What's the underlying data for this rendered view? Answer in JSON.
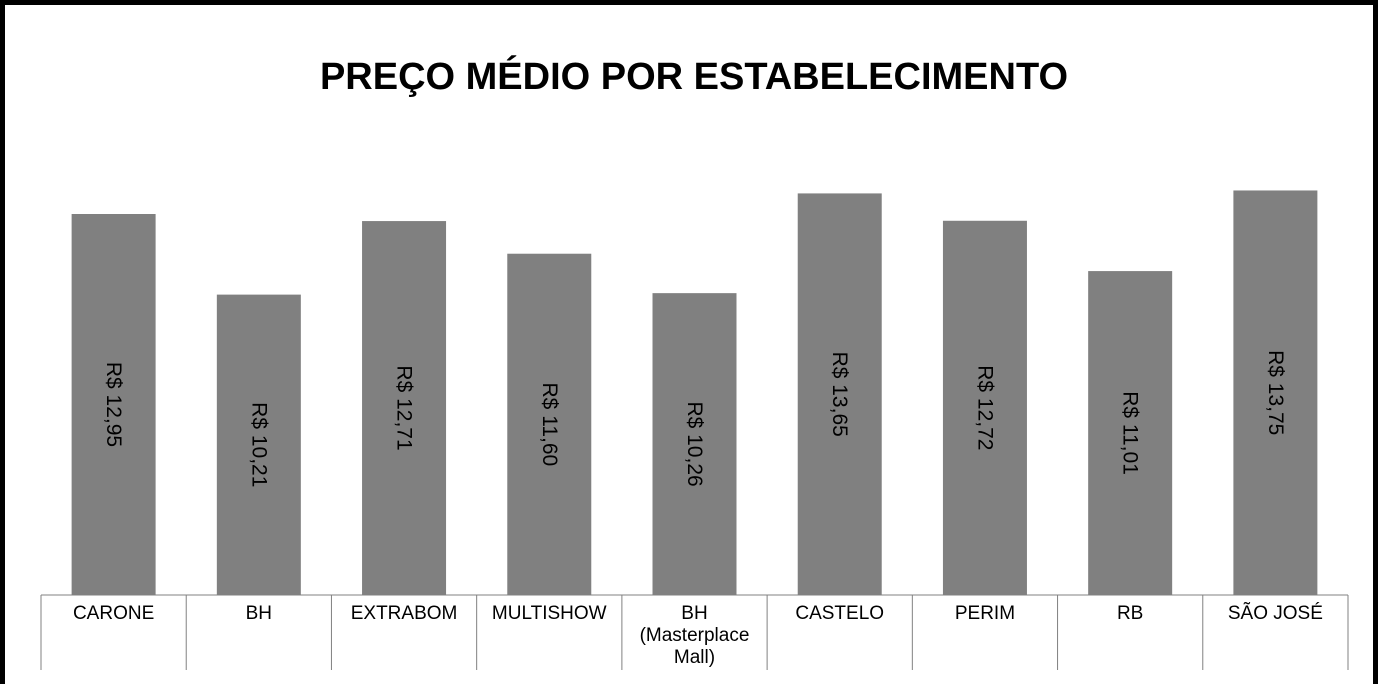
{
  "chart_data": {
    "type": "bar",
    "title": "PREÇO MÉDIO POR ESTABELECIMENTO",
    "categories": [
      "CARONE",
      "BH",
      "EXTRABOM",
      "MULTISHOW",
      "BH (Masterplace Mall)",
      "CASTELO",
      "PERIM",
      "RB",
      "SÃO JOSÉ"
    ],
    "values": [
      12.95,
      10.21,
      12.71,
      11.6,
      10.26,
      13.65,
      12.72,
      11.01,
      13.75
    ],
    "data_labels": [
      "R$ 12,95",
      "R$ 10,21",
      "R$ 12,71",
      "R$ 11,60",
      "R$ 10,26",
      "R$ 13,65",
      "R$ 12,72",
      "R$ 11,01",
      "R$ 13,75"
    ],
    "bar_color": "#808080",
    "grid": false,
    "legend": "none",
    "xlabel": "",
    "ylabel": ""
  }
}
